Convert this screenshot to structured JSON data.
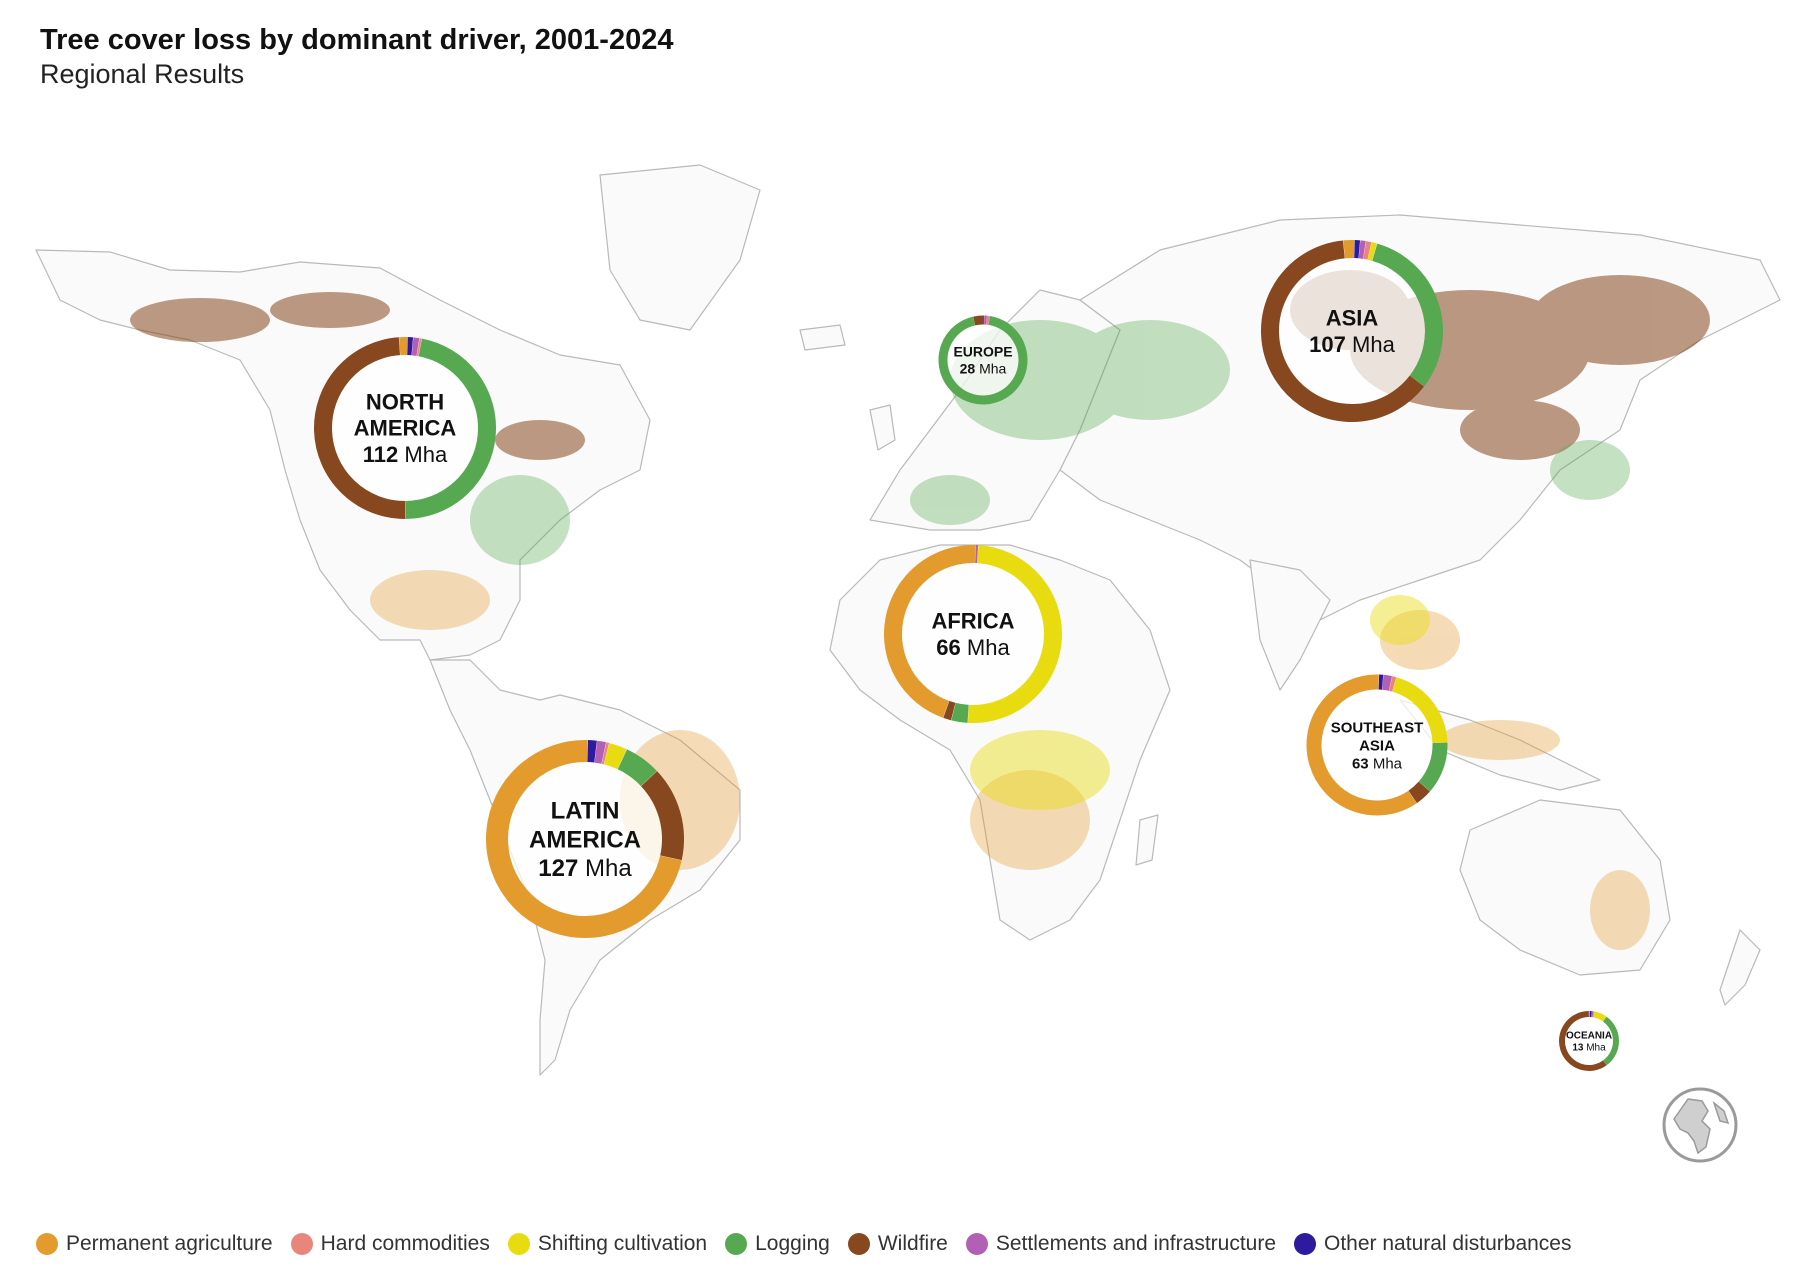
{
  "header": {
    "title": "Tree cover loss by dominant driver, 2001-2024",
    "subtitle": "Regional Results"
  },
  "legend": [
    {
      "key": "permanent_agriculture",
      "label": "Permanent agriculture",
      "color": "#E39B2D"
    },
    {
      "key": "hard_commodities",
      "label": "Hard commodities",
      "color": "#E8867B"
    },
    {
      "key": "shifting_cultivation",
      "label": "Shifting cultivation",
      "color": "#E8DB0F"
    },
    {
      "key": "logging",
      "label": "Logging",
      "color": "#56A851"
    },
    {
      "key": "wildfire",
      "label": "Wildfire",
      "color": "#87471F"
    },
    {
      "key": "settlements",
      "label": "Settlements and infrastructure",
      "color": "#B25FB5"
    },
    {
      "key": "other_natural",
      "label": "Other natural disturbances",
      "color": "#2C1B9E"
    }
  ],
  "regions": [
    {
      "key": "north_america",
      "name_lines": [
        "NORTH",
        "AMERICA"
      ],
      "value": "112",
      "unit": "Mha",
      "shares": {
        "permanent_agriculture": 0.015,
        "hard_commodities": 0.004,
        "shifting_cultivation": 0.0,
        "logging": 0.47,
        "wildfire": 0.49,
        "settlements": 0.011,
        "other_natural": 0.01
      }
    },
    {
      "key": "europe",
      "name_lines": [
        "EUROPE"
      ],
      "value": "28",
      "unit": "Mha",
      "shares": {
        "permanent_agriculture": 0.0,
        "hard_commodities": 0.01,
        "shifting_cultivation": 0.0,
        "logging": 0.94,
        "wildfire": 0.04,
        "settlements": 0.01,
        "other_natural": 0.0
      }
    },
    {
      "key": "asia",
      "name_lines": [
        "ASIA"
      ],
      "value": "107",
      "unit": "Mha",
      "shares": {
        "permanent_agriculture": 0.02,
        "hard_commodities": 0.01,
        "shifting_cultivation": 0.01,
        "logging": 0.31,
        "wildfire": 0.63,
        "settlements": 0.01,
        "other_natural": 0.01
      }
    },
    {
      "key": "africa",
      "name_lines": [
        "AFRICA"
      ],
      "value": "66",
      "unit": "Mha",
      "shares": {
        "permanent_agriculture": 0.45,
        "hard_commodities": 0.0,
        "shifting_cultivation": 0.5,
        "logging": 0.03,
        "wildfire": 0.015,
        "settlements": 0.005,
        "other_natural": 0.0
      }
    },
    {
      "key": "latin_america",
      "name_lines": [
        "LATIN",
        "AMERICA"
      ],
      "value": "127",
      "unit": "Mha",
      "shares": {
        "permanent_agriculture": 0.72,
        "hard_commodities": 0.005,
        "shifting_cultivation": 0.03,
        "logging": 0.06,
        "wildfire": 0.155,
        "settlements": 0.015,
        "other_natural": 0.015
      }
    },
    {
      "key": "southeast_asia",
      "name_lines": [
        "SOUTHEAST",
        "ASIA"
      ],
      "value": "63",
      "unit": "Mha",
      "shares": {
        "permanent_agriculture": 0.6,
        "hard_commodities": 0.01,
        "shifting_cultivation": 0.2,
        "logging": 0.12,
        "wildfire": 0.04,
        "settlements": 0.02,
        "other_natural": 0.01
      }
    },
    {
      "key": "oceania",
      "name_lines": [
        "OCEANIA"
      ],
      "value": "13",
      "unit": "Mha",
      "shares": {
        "permanent_agriculture": 0.005,
        "hard_commodities": 0.005,
        "shifting_cultivation": 0.07,
        "logging": 0.3,
        "wildfire": 0.6,
        "settlements": 0.01,
        "other_natural": 0.01
      }
    }
  ],
  "icons": {
    "globe": "globe-icon"
  }
}
